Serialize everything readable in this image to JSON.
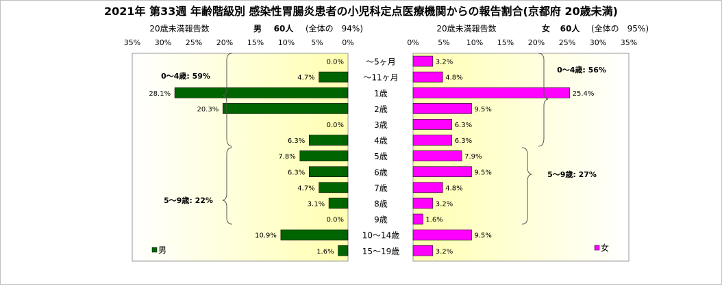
{
  "chart_data": {
    "type": "bar",
    "title": "2021年 第33週 年齢階級別 感染性胃腸炎患者の小児科定点医療機関からの報告割合(京都府 20歳未満)",
    "left_header": {
      "label": "20歳未満報告数",
      "sex": "男",
      "count": "60人",
      "share": "(全体の　94%)"
    },
    "right_header": {
      "label": "20歳未満報告数",
      "sex": "女",
      "count": "60人",
      "share": "(全体の　95%)"
    },
    "left_ticks": [
      "35%",
      "30%",
      "25%",
      "20%",
      "15%",
      "10%",
      "5%",
      "0%"
    ],
    "right_ticks": [
      "0%",
      "5%",
      "10%",
      "15%",
      "20%",
      "25%",
      "30%",
      "35%"
    ],
    "xlim": [
      0,
      35
    ],
    "categories": [
      "～5ヶ月",
      "～11ヶ月",
      "1歳",
      "2歳",
      "3歳",
      "4歳",
      "5歳",
      "6歳",
      "7歳",
      "8歳",
      "9歳",
      "10～14歳",
      "15～19歳"
    ],
    "series": [
      {
        "name": "男",
        "color": "#006400",
        "values": [
          0.0,
          4.7,
          28.1,
          20.3,
          0.0,
          6.3,
          7.8,
          6.3,
          4.7,
          3.1,
          0.0,
          10.9,
          1.6
        ],
        "labels": [
          "0.0%",
          "4.7%",
          "28.1%",
          "20.3%",
          "0.0%",
          "6.3%",
          "7.8%",
          "6.3%",
          "4.7%",
          "3.1%",
          "0.0%",
          "10.9%",
          "1.6%"
        ]
      },
      {
        "name": "女",
        "color": "#ff00ff",
        "values": [
          3.2,
          4.8,
          25.4,
          9.5,
          6.3,
          6.3,
          7.9,
          9.5,
          4.8,
          3.2,
          1.6,
          9.5,
          3.2
        ],
        "labels": [
          "3.2%",
          "4.8%",
          "25.4%",
          "9.5%",
          "6.3%",
          "6.3%",
          "7.9%",
          "9.5%",
          "4.8%",
          "3.2%",
          "1.6%",
          "9.5%",
          "3.2%"
        ]
      }
    ],
    "annotations": {
      "male_0_4": "0～4歳: 59%",
      "male_5_9": "5～9歳: 22%",
      "female_0_4": "0～4歳: 56%",
      "female_5_9": "5～9歳: 27%"
    },
    "legend": {
      "male": "男",
      "female": "女"
    },
    "colors": {
      "male": "#006400",
      "female": "#ff00ff",
      "plot_bg_edge": "#ffffff",
      "plot_bg_center": "#ffffb0"
    }
  }
}
